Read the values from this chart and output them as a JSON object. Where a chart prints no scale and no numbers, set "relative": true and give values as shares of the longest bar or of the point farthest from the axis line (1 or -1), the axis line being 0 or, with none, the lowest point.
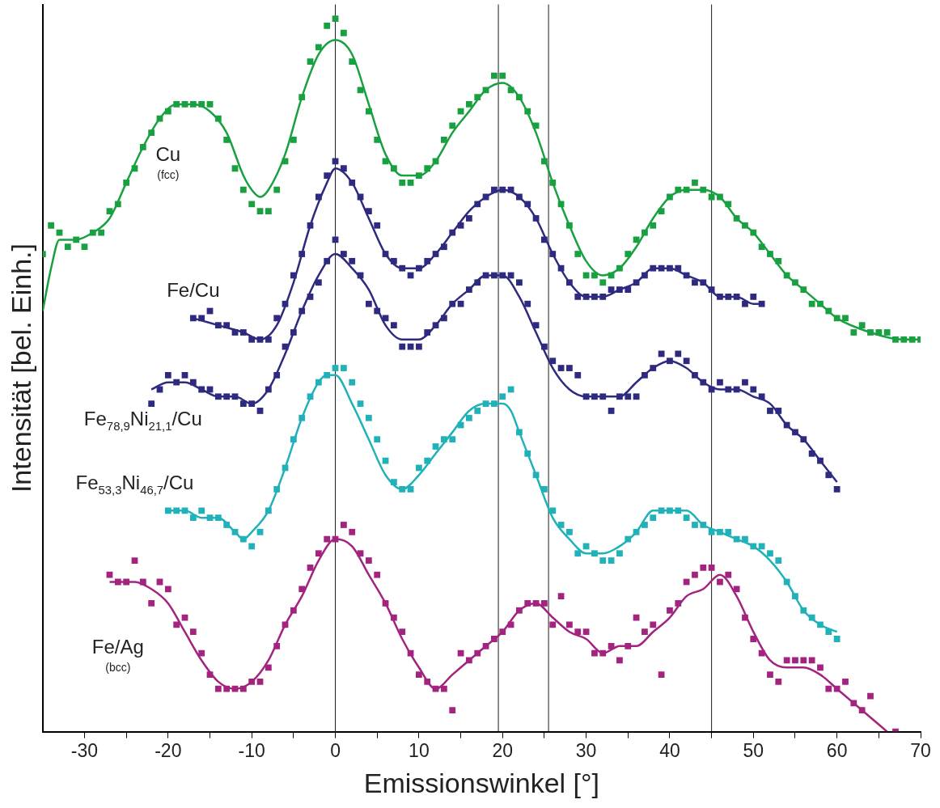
{
  "chart_data": {
    "type": "scatter",
    "xlabel": "Emissionswinkel [°]",
    "ylabel": "Intensität [bel. Einh.]",
    "relative": true,
    "grid": false,
    "marker": "square",
    "xlim": [
      -35,
      70
    ],
    "xticks": [
      -30,
      {
        "value": -25,
        "label": null
      },
      -20,
      {
        "value": -15,
        "label": null
      },
      -10,
      {
        "value": -5,
        "label": null
      },
      0,
      {
        "value": 5,
        "label": null
      },
      10,
      {
        "value": 15,
        "label": null
      },
      20,
      {
        "value": 25,
        "label": null
      },
      30,
      {
        "value": 35,
        "label": null
      },
      40,
      {
        "value": 45,
        "label": null
      },
      50,
      {
        "value": 55,
        "label": null
      },
      60,
      {
        "value": 65,
        "label": null
      },
      70
    ],
    "ref_lines": [
      {
        "axis": "x",
        "value": 0,
        "color": "#000000"
      },
      {
        "axis": "x",
        "value": 19.5,
        "color": "#000000"
      },
      {
        "axis": "x",
        "value": 25.5,
        "color": "#000000"
      },
      {
        "axis": "x",
        "value": 45,
        "color": "#000000"
      }
    ],
    "series": [
      {
        "name": "Cu (fcc)",
        "type": "scatter",
        "color": "#19a040",
        "x": [
          -35,
          -34,
          -33,
          -32,
          -31,
          -30,
          -29,
          -28,
          -27,
          -26,
          -25,
          -24,
          -23,
          -22,
          -21,
          -20,
          -19,
          -18,
          -17,
          -16,
          -15,
          -14,
          -13,
          -12,
          -11,
          -10,
          -9,
          -8,
          -7,
          -6,
          -5,
          -4,
          -3,
          -2,
          -1,
          0,
          1,
          2,
          3,
          4,
          5,
          6,
          7,
          8,
          9,
          10,
          11,
          12,
          13,
          14,
          15,
          16,
          17,
          18,
          19,
          20,
          21,
          22,
          23,
          24,
          25,
          26,
          27,
          28,
          29,
          30,
          31,
          32,
          33,
          34,
          35,
          36,
          37,
          38,
          39,
          40,
          41,
          42,
          43,
          44,
          45,
          46,
          47,
          48,
          49,
          50,
          51,
          52,
          53,
          54,
          55,
          56,
          57,
          58,
          59,
          60,
          61,
          62,
          63,
          64,
          65,
          66,
          67,
          68,
          69,
          70
        ],
        "values": [
          0.67,
          0.71,
          0.7,
          0.68,
          0.69,
          0.68,
          0.7,
          0.7,
          0.73,
          0.74,
          0.77,
          0.79,
          0.82,
          0.84,
          0.86,
          0.87,
          0.88,
          0.88,
          0.88,
          0.88,
          0.88,
          0.86,
          0.83,
          0.79,
          0.76,
          0.74,
          0.73,
          0.73,
          0.76,
          0.8,
          0.83,
          0.89,
          0.94,
          0.96,
          0.99,
          1.0,
          0.98,
          0.94,
          0.9,
          0.87,
          0.83,
          0.8,
          0.79,
          0.77,
          0.77,
          0.78,
          0.79,
          0.8,
          0.83,
          0.85,
          0.87,
          0.88,
          0.89,
          0.9,
          0.92,
          0.92,
          0.9,
          0.89,
          0.87,
          0.85,
          0.8,
          0.77,
          0.74,
          0.71,
          0.67,
          0.64,
          0.64,
          0.63,
          0.64,
          0.65,
          0.67,
          0.69,
          0.7,
          0.71,
          0.73,
          0.75,
          0.76,
          0.76,
          0.77,
          0.76,
          0.75,
          0.75,
          0.74,
          0.72,
          0.71,
          0.7,
          0.68,
          0.67,
          0.66,
          0.64,
          0.63,
          0.62,
          0.6,
          0.6,
          0.59,
          0.58,
          0.58,
          0.56,
          0.57,
          0.56,
          0.56,
          0.56,
          0.55,
          0.55,
          0.55,
          0.55
        ]
      },
      {
        "type": "line",
        "color": "#19a040",
        "marker": "none",
        "x": [
          -35,
          -34,
          -33,
          -31,
          -29,
          -27,
          -25,
          -23,
          -21,
          -19,
          -17,
          -15,
          -13,
          -11,
          -10,
          -9,
          -8,
          -6,
          -4,
          -2,
          0,
          2,
          4,
          6,
          8,
          10,
          12,
          14,
          16,
          18,
          20,
          22,
          24,
          26,
          28,
          30,
          32,
          34,
          36,
          38,
          40,
          42,
          44,
          46,
          48,
          50,
          52,
          54,
          56,
          58,
          60,
          64,
          68,
          70
        ],
        "values": [
          0.59,
          0.65,
          0.69,
          0.69,
          0.7,
          0.72,
          0.77,
          0.82,
          0.86,
          0.88,
          0.88,
          0.87,
          0.84,
          0.78,
          0.76,
          0.75,
          0.76,
          0.81,
          0.89,
          0.95,
          0.97,
          0.95,
          0.88,
          0.81,
          0.78,
          0.78,
          0.8,
          0.84,
          0.87,
          0.9,
          0.91,
          0.89,
          0.84,
          0.77,
          0.71,
          0.66,
          0.64,
          0.65,
          0.68,
          0.72,
          0.75,
          0.76,
          0.76,
          0.75,
          0.72,
          0.7,
          0.67,
          0.64,
          0.62,
          0.6,
          0.58,
          0.56,
          0.55,
          0.55
        ]
      },
      {
        "name": "Fe/Cu",
        "type": "scatter",
        "color": "#2e2a80",
        "x": [
          -17,
          -16,
          -15,
          -14,
          -13,
          -12,
          -11,
          -10,
          -9,
          -8,
          -7,
          -6,
          -5,
          -4,
          -3,
          -2,
          -1,
          0,
          1,
          2,
          3,
          4,
          5,
          6,
          7,
          8,
          9,
          10,
          11,
          12,
          13,
          14,
          15,
          16,
          17,
          18,
          19,
          20,
          21,
          22,
          23,
          24,
          25,
          26,
          27,
          28,
          29,
          30,
          31,
          32,
          33,
          34,
          35,
          36,
          37,
          38,
          39,
          40,
          41,
          42,
          43,
          44,
          45,
          46,
          47,
          48,
          49,
          50,
          51
        ],
        "values": [
          0.58,
          0.58,
          0.59,
          0.57,
          0.57,
          0.56,
          0.56,
          0.55,
          0.55,
          0.55,
          0.58,
          0.6,
          0.64,
          0.67,
          0.71,
          0.75,
          0.78,
          0.8,
          0.79,
          0.77,
          0.75,
          0.73,
          0.71,
          0.67,
          0.66,
          0.65,
          0.64,
          0.65,
          0.66,
          0.67,
          0.68,
          0.7,
          0.71,
          0.72,
          0.74,
          0.75,
          0.76,
          0.76,
          0.76,
          0.75,
          0.74,
          0.72,
          0.69,
          0.67,
          0.65,
          0.63,
          0.61,
          0.61,
          0.61,
          0.61,
          0.62,
          0.62,
          0.62,
          0.63,
          0.64,
          0.65,
          0.65,
          0.65,
          0.65,
          0.64,
          0.63,
          0.63,
          0.62,
          0.61,
          0.61,
          0.61,
          0.6,
          0.61,
          0.6
        ]
      },
      {
        "type": "line",
        "color": "#2e2a80",
        "marker": "none",
        "x": [
          -17,
          -14,
          -11,
          -9,
          -7,
          -5,
          -3,
          -1,
          0,
          2,
          4,
          6,
          8,
          10,
          12,
          14,
          16,
          18,
          20,
          22,
          24,
          26,
          28,
          30,
          32,
          34,
          36,
          38,
          40,
          42,
          44,
          46,
          48,
          50,
          51
        ],
        "values": [
          0.58,
          0.57,
          0.56,
          0.55,
          0.57,
          0.63,
          0.71,
          0.77,
          0.79,
          0.77,
          0.72,
          0.67,
          0.65,
          0.65,
          0.67,
          0.7,
          0.73,
          0.75,
          0.76,
          0.75,
          0.72,
          0.67,
          0.63,
          0.61,
          0.61,
          0.62,
          0.63,
          0.65,
          0.65,
          0.64,
          0.63,
          0.61,
          0.61,
          0.6,
          0.6
        ]
      },
      {
        "name": "Fe$_{78,9}$Ni$_{21,1}$/Cu",
        "type": "scatter",
        "color": "#2e2a80",
        "x": [
          -22,
          -21,
          -20,
          -19,
          -18,
          -17,
          -16,
          -15,
          -14,
          -13,
          -12,
          -11,
          -10,
          -9,
          -8,
          -7,
          -6,
          -5,
          -4,
          -3,
          -2,
          -1,
          0,
          1,
          2,
          3,
          4,
          5,
          6,
          7,
          8,
          9,
          10,
          11,
          12,
          13,
          14,
          15,
          16,
          17,
          18,
          19,
          20,
          21,
          22,
          23,
          24,
          25,
          26,
          27,
          28,
          29,
          30,
          31,
          32,
          33,
          34,
          35,
          36,
          37,
          38,
          39,
          40,
          41,
          42,
          43,
          44,
          45,
          46,
          47,
          48,
          49,
          50,
          51,
          52,
          53,
          54,
          55,
          56,
          57,
          58,
          59,
          60
        ],
        "values": [
          0.46,
          0.48,
          0.5,
          0.49,
          0.5,
          0.49,
          0.48,
          0.48,
          0.47,
          0.47,
          0.47,
          0.46,
          0.46,
          0.45,
          0.48,
          0.5,
          0.54,
          0.56,
          0.59,
          0.61,
          0.63,
          0.66,
          0.69,
          0.67,
          0.66,
          0.64,
          0.6,
          0.59,
          0.58,
          0.57,
          0.54,
          0.54,
          0.54,
          0.56,
          0.57,
          0.58,
          0.6,
          0.6,
          0.62,
          0.63,
          0.64,
          0.64,
          0.64,
          0.64,
          0.63,
          0.6,
          0.57,
          0.54,
          0.52,
          0.51,
          0.51,
          0.5,
          0.47,
          0.47,
          0.47,
          0.45,
          0.47,
          0.47,
          0.47,
          0.5,
          0.51,
          0.53,
          0.52,
          0.53,
          0.52,
          0.5,
          0.49,
          0.48,
          0.49,
          0.48,
          0.48,
          0.49,
          0.48,
          0.47,
          0.45,
          0.45,
          0.43,
          0.42,
          0.41,
          0.39,
          0.38,
          0.36,
          0.34
        ]
      },
      {
        "type": "line",
        "color": "#2e2a80",
        "marker": "none",
        "x": [
          -22,
          -20,
          -18,
          -16,
          -14,
          -12,
          -10,
          -8,
          -6,
          -4,
          -2,
          0,
          2,
          4,
          6,
          8,
          10,
          12,
          14,
          16,
          18,
          20,
          22,
          24,
          26,
          28,
          30,
          32,
          34,
          36,
          38,
          40,
          42,
          44,
          46,
          48,
          50,
          52,
          54,
          56,
          58,
          60
        ],
        "values": [
          0.48,
          0.49,
          0.49,
          0.48,
          0.47,
          0.47,
          0.46,
          0.48,
          0.53,
          0.59,
          0.64,
          0.67,
          0.65,
          0.62,
          0.57,
          0.55,
          0.55,
          0.57,
          0.6,
          0.62,
          0.64,
          0.64,
          0.61,
          0.56,
          0.51,
          0.48,
          0.47,
          0.47,
          0.47,
          0.49,
          0.51,
          0.52,
          0.51,
          0.49,
          0.48,
          0.48,
          0.47,
          0.46,
          0.43,
          0.41,
          0.38,
          0.35
        ]
      },
      {
        "name": "Fe$_{53,3}$Ni$_{46,7}$/Cu",
        "type": "scatter",
        "color": "#20b2b8",
        "x": [
          -20,
          -19,
          -18,
          -17,
          -16,
          -15,
          -14,
          -13,
          -12,
          -11,
          -10,
          -9,
          -8,
          -7,
          -6,
          -5,
          -4,
          -3,
          -2,
          -1,
          0,
          1,
          2,
          3,
          4,
          5,
          6,
          7,
          8,
          9,
          10,
          11,
          12,
          13,
          14,
          15,
          16,
          17,
          18,
          19,
          20,
          21,
          22,
          23,
          24,
          25,
          26,
          27,
          28,
          29,
          30,
          31,
          32,
          33,
          34,
          35,
          36,
          37,
          38,
          39,
          40,
          41,
          42,
          43,
          44,
          45,
          46,
          47,
          48,
          49,
          50,
          51,
          52,
          53,
          54,
          55,
          56,
          57,
          58,
          59,
          60
        ],
        "values": [
          0.31,
          0.31,
          0.31,
          0.3,
          0.31,
          0.3,
          0.3,
          0.29,
          0.28,
          0.27,
          0.26,
          0.28,
          0.31,
          0.34,
          0.37,
          0.41,
          0.44,
          0.47,
          0.49,
          0.5,
          0.51,
          0.51,
          0.49,
          0.46,
          0.44,
          0.41,
          0.38,
          0.35,
          0.34,
          0.34,
          0.37,
          0.38,
          0.4,
          0.41,
          0.41,
          0.43,
          0.44,
          0.45,
          0.46,
          0.46,
          0.47,
          0.48,
          0.42,
          0.39,
          0.36,
          0.34,
          0.31,
          0.29,
          0.28,
          0.25,
          0.26,
          0.25,
          0.24,
          0.24,
          0.25,
          0.27,
          0.28,
          0.29,
          0.3,
          0.31,
          0.31,
          0.31,
          0.3,
          0.29,
          0.29,
          0.28,
          0.28,
          0.28,
          0.27,
          0.27,
          0.26,
          0.26,
          0.25,
          0.24,
          0.21,
          0.19,
          0.17,
          0.16,
          0.15,
          0.14,
          0.13
        ]
      },
      {
        "type": "line",
        "color": "#20b2b8",
        "marker": "none",
        "x": [
          -20,
          -18,
          -16,
          -14,
          -12,
          -11,
          -10,
          -8,
          -6,
          -4,
          -2,
          -1,
          0,
          2,
          4,
          6,
          8,
          10,
          12,
          14,
          16,
          18,
          20,
          21,
          22,
          24,
          26,
          28,
          30,
          32,
          34,
          36,
          38,
          40,
          42,
          44,
          46,
          48,
          50,
          52,
          54,
          56,
          58,
          60
        ],
        "values": [
          0.31,
          0.31,
          0.3,
          0.3,
          0.28,
          0.27,
          0.28,
          0.31,
          0.37,
          0.44,
          0.49,
          0.5,
          0.5,
          0.46,
          0.41,
          0.36,
          0.34,
          0.36,
          0.39,
          0.42,
          0.45,
          0.46,
          0.46,
          0.45,
          0.42,
          0.36,
          0.3,
          0.27,
          0.25,
          0.25,
          0.26,
          0.28,
          0.31,
          0.31,
          0.31,
          0.29,
          0.28,
          0.27,
          0.26,
          0.24,
          0.21,
          0.17,
          0.15,
          0.14
        ]
      },
      {
        "name": "Fe/Ag (bcc)",
        "type": "scatter",
        "color": "#a3247f",
        "x": [
          -27,
          -26,
          -25,
          -24,
          -23,
          -22,
          -21,
          -20,
          -19,
          -18,
          -17,
          -16,
          -15,
          -14,
          -13,
          -12,
          -11,
          -10,
          -9,
          -8,
          -7,
          -6,
          -5,
          -4,
          -3,
          -2,
          -1,
          0,
          1,
          2,
          3,
          4,
          5,
          6,
          7,
          8,
          9,
          10,
          11,
          12,
          13,
          14,
          15,
          16,
          17,
          18,
          19,
          20,
          21,
          22,
          23,
          24,
          25,
          26,
          27,
          28,
          29,
          30,
          31,
          32,
          33,
          34,
          35,
          36,
          37,
          38,
          39,
          40,
          41,
          42,
          43,
          44,
          45,
          46,
          47,
          48,
          49,
          50,
          51,
          52,
          53,
          54,
          55,
          56,
          57,
          58,
          59,
          60,
          61,
          62,
          63,
          64,
          67
        ],
        "values": [
          0.22,
          0.21,
          0.21,
          0.24,
          0.21,
          0.18,
          0.21,
          0.2,
          0.15,
          0.16,
          0.14,
          0.11,
          0.08,
          0.06,
          0.06,
          0.06,
          0.06,
          0.07,
          0.07,
          0.09,
          0.12,
          0.15,
          0.17,
          0.2,
          0.23,
          0.25,
          0.27,
          0.27,
          0.29,
          0.28,
          0.25,
          0.24,
          0.22,
          0.18,
          0.16,
          0.14,
          0.11,
          0.08,
          0.07,
          0.06,
          0.06,
          0.03,
          0.11,
          0.1,
          0.11,
          0.12,
          0.13,
          0.14,
          0.15,
          0.17,
          0.18,
          0.18,
          0.18,
          0.15,
          0.19,
          0.15,
          0.14,
          0.14,
          0.11,
          0.11,
          0.12,
          0.1,
          0.12,
          0.16,
          0.14,
          0.15,
          0.08,
          0.17,
          0.18,
          0.21,
          0.22,
          0.23,
          0.23,
          0.21,
          0.22,
          0.2,
          0.16,
          0.13,
          0.11,
          0.08,
          0.07,
          0.1,
          0.1,
          0.1,
          0.1,
          0.09,
          0.06,
          0.06,
          0.07,
          0.04,
          0.03,
          0.05,
          0.0
        ]
      },
      {
        "type": "line",
        "color": "#a3247f",
        "marker": "none",
        "x": [
          -27,
          -24,
          -22,
          -20,
          -18,
          -16,
          -14,
          -12,
          -10,
          -8,
          -6,
          -4,
          -2,
          0,
          2,
          4,
          6,
          8,
          10,
          12,
          14,
          16,
          18,
          20,
          22,
          24,
          26,
          28,
          30,
          32,
          34,
          36,
          38,
          40,
          42,
          44,
          46,
          48,
          50,
          52,
          54,
          56,
          58,
          60,
          62,
          64,
          66
        ],
        "values": [
          0.21,
          0.21,
          0.2,
          0.18,
          0.14,
          0.1,
          0.07,
          0.06,
          0.07,
          0.1,
          0.15,
          0.19,
          0.24,
          0.27,
          0.26,
          0.22,
          0.18,
          0.13,
          0.09,
          0.06,
          0.08,
          0.1,
          0.12,
          0.14,
          0.17,
          0.18,
          0.16,
          0.14,
          0.13,
          0.11,
          0.12,
          0.12,
          0.14,
          0.16,
          0.19,
          0.2,
          0.22,
          0.19,
          0.14,
          0.1,
          0.09,
          0.09,
          0.08,
          0.06,
          0.04,
          0.02,
          0.0
        ]
      }
    ]
  }
}
